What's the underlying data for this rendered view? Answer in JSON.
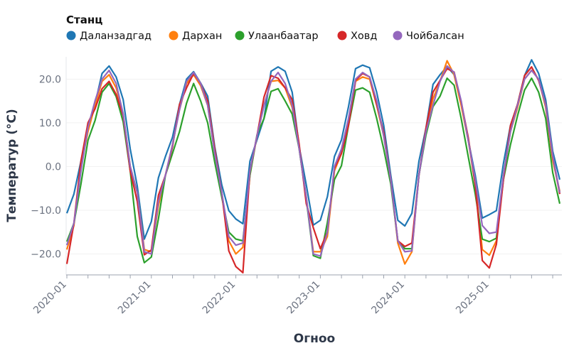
{
  "chart_data": {
    "type": "line",
    "legend": {
      "title": "Станц",
      "placement": "top-left"
    },
    "xlabel": "Огноо",
    "ylabel": "Температур (°C)",
    "x_start": "2020-01",
    "x_end": "2025-11",
    "x_tick_labels": [
      "2020-01",
      "2021-01",
      "2022-01",
      "2023-01",
      "2024-01",
      "2025-01"
    ],
    "y_ticks": [
      20,
      10,
      0,
      -10,
      -20
    ],
    "y_tick_labels": [
      "20.0",
      "10.0",
      "0.0",
      "−10.0",
      "−20.0"
    ],
    "ylim": [
      -24.8,
      25.1
    ],
    "grid": "horizontal, faint",
    "series": [
      {
        "name": "Даланзадгад",
        "color": "#1f77b4",
        "values": [
          -10.7,
          -6.3,
          1.2,
          8.8,
          14.3,
          21.3,
          23,
          20.5,
          15.3,
          4,
          -4.5,
          -16.6,
          -12.6,
          -2.6,
          2.3,
          6.7,
          14.2,
          20,
          21.7,
          19.1,
          16.1,
          4.5,
          -4.2,
          -10.1,
          -12,
          -13.1,
          1.2,
          6.1,
          11,
          21.8,
          22.8,
          21.8,
          17,
          4.5,
          -4.2,
          -13.4,
          -12.3,
          -6.9,
          2.3,
          6.1,
          13.7,
          22.4,
          23.2,
          22.6,
          17,
          9.4,
          -2,
          -12.3,
          -13.6,
          -10.7,
          1.2,
          8.8,
          18.8,
          21,
          22.9,
          21,
          14.2,
          6.1,
          -2,
          -11.8,
          -11,
          -10.1,
          0.7,
          9.4,
          14.2,
          20.8,
          24.4,
          21.3,
          15.3,
          3.5,
          -3
        ]
      },
      {
        "name": "Дархан",
        "color": "#ff7f0e",
        "values": [
          -19,
          -13.5,
          0,
          8,
          14,
          19.5,
          21,
          18,
          12,
          0,
          -6,
          -19,
          -19.5,
          -9,
          -2,
          5,
          13,
          19,
          21,
          18.5,
          14,
          3,
          -6,
          -17,
          -20,
          -18.5,
          -2,
          7,
          14,
          19.5,
          19.7,
          18,
          13.5,
          4,
          -7,
          -19.5,
          -19.5,
          -16,
          -1,
          3,
          10,
          19.5,
          20.5,
          20,
          14,
          7,
          -3,
          -17.5,
          -22.3,
          -19.5,
          -2,
          8,
          15.5,
          19.5,
          24.2,
          21,
          14,
          6,
          -4,
          -19,
          -20.3,
          -17,
          -2,
          8,
          13.5,
          20,
          22,
          20,
          13.5,
          1.5,
          -5.7
        ]
      },
      {
        "name": "Улаанбаатар",
        "color": "#2ca02c",
        "values": [
          -17.2,
          -13,
          -4,
          6,
          10.5,
          17,
          19,
          16,
          10.2,
          -1,
          -16,
          -22,
          -20.7,
          -12,
          -2,
          3,
          8,
          14.5,
          19,
          15,
          10,
          1,
          -7,
          -15,
          -16.6,
          -17,
          -2,
          7.2,
          11,
          17.2,
          17.8,
          15,
          12,
          4,
          -7.4,
          -20.4,
          -21,
          -12.8,
          -3,
          0.2,
          9.4,
          17.5,
          18,
          17,
          11,
          4,
          -4,
          -17,
          -18.8,
          -18.8,
          -2,
          7.2,
          13.7,
          16.1,
          20.2,
          18.6,
          11,
          2.3,
          -6.3,
          -16.6,
          -17.2,
          -16.4,
          -3,
          5,
          11.6,
          17.5,
          20.2,
          17,
          11,
          -1.4,
          -8.5
        ]
      },
      {
        "name": "Ховд",
        "color": "#d62728",
        "values": [
          -22.3,
          -13,
          1.2,
          10,
          13.2,
          17.8,
          19.5,
          16.5,
          11.6,
          -1,
          -8,
          -20.2,
          -19.1,
          -6.6,
          -2,
          4.5,
          14.2,
          18,
          21.3,
          19,
          15,
          4,
          -6,
          -19.3,
          -22.9,
          -24.3,
          -1,
          7,
          15.9,
          20.8,
          20.2,
          18,
          15.3,
          5,
          -8.5,
          -14,
          -18.8,
          -15,
          -0.4,
          3,
          9.4,
          19.7,
          21.3,
          20.5,
          14.2,
          7.8,
          -3,
          -17,
          -18.3,
          -17.5,
          -2,
          8.8,
          17,
          19.7,
          22.4,
          21.6,
          14.8,
          6.7,
          -4.2,
          -21.5,
          -23.2,
          -17.8,
          -3,
          9.4,
          14.2,
          20.8,
          22.8,
          19.7,
          14.2,
          2.3,
          -6.3
        ]
      },
      {
        "name": "Чойбалсан",
        "color": "#9467bd",
        "values": [
          -18,
          -13,
          -1,
          9,
          15,
          20,
          22,
          19,
          12,
          0,
          -6,
          -19.5,
          -20,
          -8,
          -2,
          5,
          13,
          19.5,
          21.5,
          19,
          14,
          3,
          -6,
          -16,
          -18,
          -17.5,
          -1,
          7,
          14,
          19.5,
          21.5,
          19,
          14,
          4,
          -7,
          -20,
          -20.5,
          -15,
          0,
          4,
          11,
          20,
          21.5,
          20.5,
          15,
          7,
          -3,
          -17,
          -19.5,
          -19.3,
          -2,
          8,
          14,
          19.5,
          23,
          21.5,
          15,
          6,
          -3,
          -13.5,
          -15.3,
          -15,
          -2,
          8,
          14,
          20,
          22,
          20,
          14,
          2.5,
          -6
        ]
      }
    ]
  }
}
